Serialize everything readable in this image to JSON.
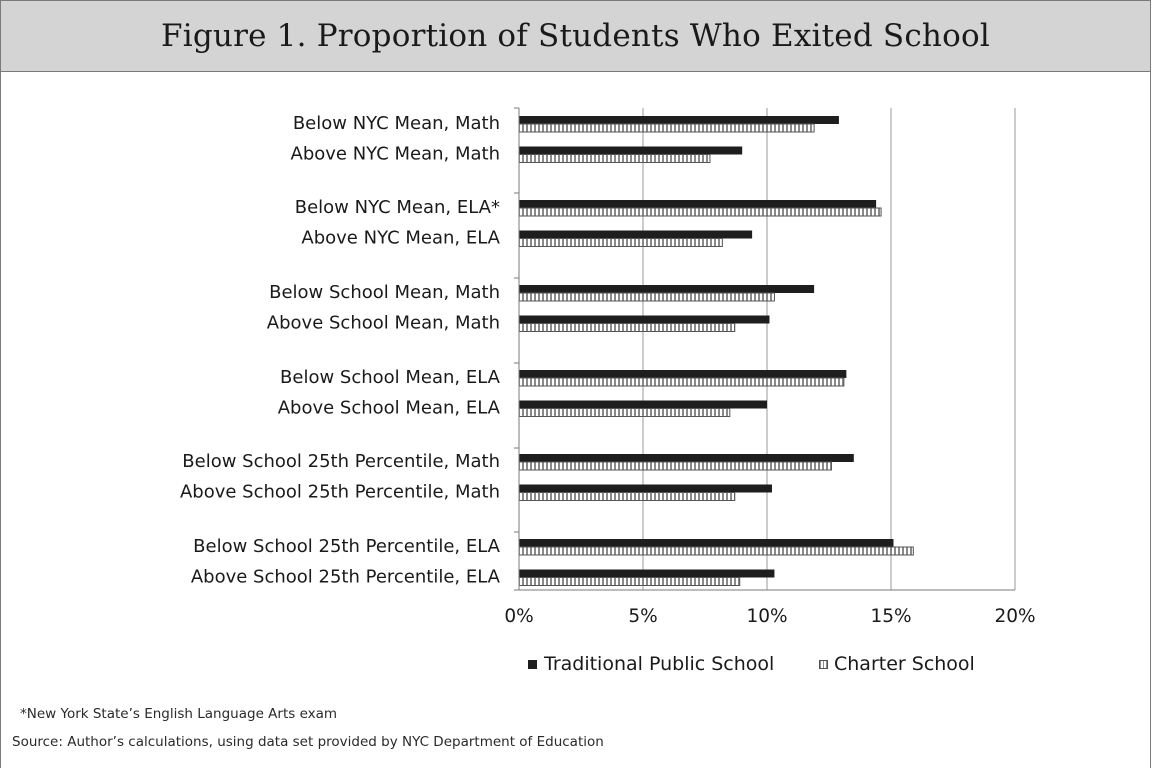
{
  "title": "Figure 1. Proportion of Students Who Exited School",
  "footnote": "*New York State’s English Language Arts exam",
  "source": "Source: Author’s calculations, using data set provided by NYC Department of Education",
  "colors": {
    "traditional": "#1e1e1e",
    "charter_border": "#555555",
    "charter_stripe": "#8a8a8a",
    "grid": "#9a9a9a",
    "title_bg": "#d4d4d4"
  },
  "chart_data": {
    "type": "bar",
    "orientation": "horizontal",
    "categories": [
      "Below NYC Mean, Math",
      "Above NYC Mean, Math",
      "Below NYC Mean, ELA*",
      "Above NYC Mean, ELA",
      "Below School Mean, Math",
      "Above School Mean, Math",
      "Below School Mean, ELA",
      "Above School Mean, ELA",
      "Below School 25th Percentile, Math",
      "Above School 25th Percentile, Math",
      "Below School 25th Percentile, ELA",
      "Above School 25th Percentile, ELA"
    ],
    "series": [
      {
        "name": "Traditional Public School",
        "values": [
          12.9,
          9.0,
          14.4,
          9.4,
          11.9,
          10.1,
          13.2,
          10.0,
          13.5,
          10.2,
          15.1,
          10.3
        ]
      },
      {
        "name": "Charter School",
        "values": [
          11.9,
          7.7,
          14.6,
          8.2,
          10.3,
          8.7,
          13.1,
          8.5,
          12.6,
          8.7,
          15.9,
          8.9
        ]
      }
    ],
    "xlim": [
      0,
      20
    ],
    "xticks": [
      "0%",
      "5%",
      "10%",
      "15%",
      "20%"
    ],
    "xtick_values": [
      0,
      5,
      10,
      15,
      20
    ],
    "grid": true,
    "legend_position": "bottom"
  }
}
